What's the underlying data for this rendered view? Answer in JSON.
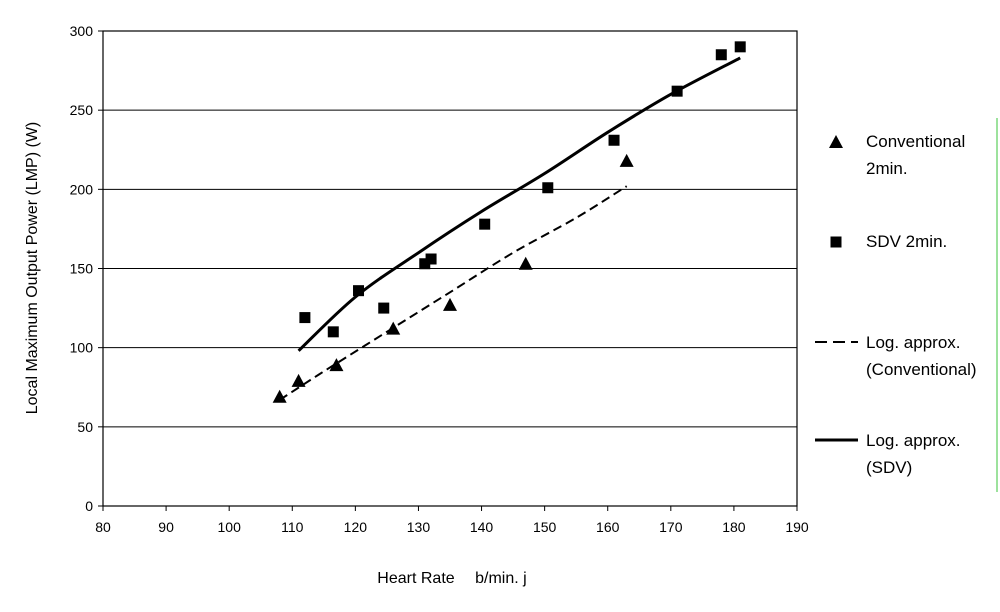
{
  "chart_data": {
    "type": "scatter",
    "title": "",
    "xlabel": "Heart Rate　 b/min. j",
    "ylabel": "Local Maximum Output Power (LMP) (W)",
    "xlim": [
      80,
      190
    ],
    "ylim": [
      0,
      300
    ],
    "x_ticks": [
      80,
      90,
      100,
      110,
      120,
      130,
      140,
      150,
      160,
      170,
      180,
      190
    ],
    "y_ticks": [
      0,
      50,
      100,
      150,
      200,
      250,
      300
    ],
    "grid": "horizontal",
    "legend_position": "right",
    "series": [
      {
        "name": "Conventional 2min.",
        "legend_lines": [
          "Conventional",
          "2min."
        ],
        "kind": "points",
        "marker": "triangle",
        "points": [
          [
            108,
            69
          ],
          [
            111,
            79
          ],
          [
            117,
            89
          ],
          [
            126,
            112
          ],
          [
            135,
            127
          ],
          [
            147,
            153
          ],
          [
            163,
            218
          ]
        ]
      },
      {
        "name": "SDV 2min.",
        "legend_lines": [
          "SDV 2min."
        ],
        "kind": "points",
        "marker": "square",
        "points": [
          [
            112,
            119
          ],
          [
            116.5,
            110
          ],
          [
            120.5,
            136
          ],
          [
            124.5,
            125
          ],
          [
            131,
            153
          ],
          [
            132,
            156
          ],
          [
            140.5,
            178
          ],
          [
            150.5,
            201
          ],
          [
            161,
            231
          ],
          [
            171,
            262
          ],
          [
            178,
            285
          ],
          [
            181,
            290
          ]
        ]
      },
      {
        "name": "Log. approx. (Conventional)",
        "legend_lines": [
          "Log. approx.",
          "(Conventional)"
        ],
        "kind": "line",
        "dash": "dashed",
        "points": [
          [
            108,
            67
          ],
          [
            115,
            85
          ],
          [
            125,
            110
          ],
          [
            135,
            135
          ],
          [
            145,
            160
          ],
          [
            155,
            182
          ],
          [
            163,
            202
          ]
        ]
      },
      {
        "name": "Log. approx. (SDV)",
        "legend_lines": [
          "Log. approx.",
          "(SDV)"
        ],
        "kind": "line",
        "dash": "solid",
        "points": [
          [
            111,
            98
          ],
          [
            120,
            132
          ],
          [
            130,
            160
          ],
          [
            140,
            186
          ],
          [
            150,
            210
          ],
          [
            160,
            236
          ],
          [
            170,
            260
          ],
          [
            181,
            283
          ]
        ]
      }
    ]
  }
}
